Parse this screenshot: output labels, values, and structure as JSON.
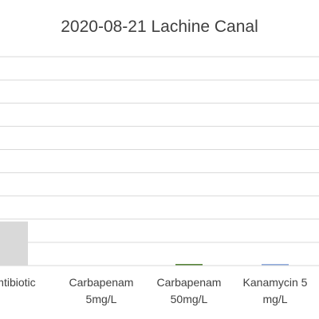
{
  "chart_data": {
    "type": "bar",
    "title": "2020-08-21 Lachine Canal",
    "categories": [
      [
        "antibiotic"
      ],
      [
        "Carbapenam",
        "5mg/L"
      ],
      [
        "Carbapenam",
        "50mg/L"
      ],
      [
        "Kanamycin 5",
        "mg/L"
      ]
    ],
    "values": [
      19,
      0,
      0.5,
      0.4
    ],
    "colors": [
      "#d9d9d9",
      "#4472c4",
      "#548235",
      "#8faadc"
    ],
    "ylim": [
      0,
      100
    ],
    "gridlines": true,
    "xlabel": "",
    "ylabel": ""
  }
}
